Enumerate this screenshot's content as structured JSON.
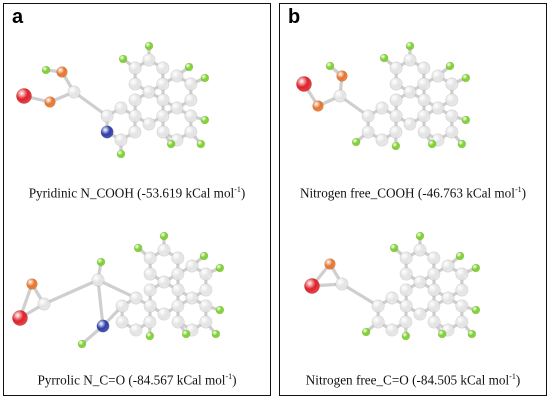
{
  "colors": {
    "carbon": "#e4e4e4",
    "hydrogen": "#7ad12a",
    "oxygen_carbonyl": "#e0222a",
    "oxygen_hydroxyl": "#e8742c",
    "nitrogen": "#2e3ca8",
    "border": "#111111"
  },
  "panels": [
    {
      "letter": "a",
      "structures": [
        {
          "label_main": "Pyridinic N_COOH (-53.619 kCal mol",
          "label_sup": "-1",
          "label_end": ")",
          "functional_group": "COOH",
          "heteroatom": "pyridinic-N"
        },
        {
          "label_main": "Pyrrolic N_C=O (-84.567 kCal mol",
          "label_sup": "-1",
          "label_end": ")",
          "functional_group": "C=O",
          "heteroatom": "pyrrolic-N"
        }
      ]
    },
    {
      "letter": "b",
      "structures": [
        {
          "label_main": "Nitrogen free_COOH (-46.763 kCal mol",
          "label_sup": "-1",
          "label_end": ")",
          "functional_group": "COOH",
          "heteroatom": "none"
        },
        {
          "label_main": "Nitrogen free_C=O (-84.505 kCal mol",
          "label_sup": "-1",
          "label_end": ")",
          "functional_group": "C=O",
          "heteroatom": "none"
        }
      ]
    }
  ]
}
